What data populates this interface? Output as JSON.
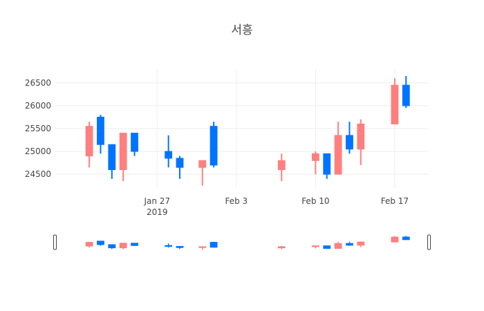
{
  "chart_data": {
    "type": "candlestick",
    "title": "서흥",
    "xlabel": "",
    "ylabel": "",
    "ylim": [
      24200,
      26800
    ],
    "yticks": [
      24500,
      25000,
      25500,
      26000,
      26500
    ],
    "ytick_labels": [
      "24500",
      "25000",
      "25500",
      "26000",
      "26500"
    ],
    "x_range": [
      "2019-01-18",
      "2019-02-20"
    ],
    "xticks": [
      "2019-01-27",
      "2019-02-03",
      "2019-02-10",
      "2019-02-17"
    ],
    "xtick_labels": [
      "Jan 27",
      "Feb 3",
      "Feb 10",
      "Feb 17"
    ],
    "xtick_sublabel": "2019",
    "grid": true,
    "legend": "none",
    "range_slider": true,
    "colors": {
      "increasing": "#0074ff",
      "decreasing": "#ff7f7f",
      "grid": "#eeeeee",
      "text": "#444444"
    },
    "candles": [
      {
        "date": "2019-01-21",
        "open": 25550,
        "high": 25650,
        "low": 24650,
        "close": 24900
      },
      {
        "date": "2019-01-22",
        "open": 25150,
        "high": 25800,
        "low": 24950,
        "close": 25750
      },
      {
        "date": "2019-01-23",
        "open": 24600,
        "high": 25150,
        "low": 24400,
        "close": 25150
      },
      {
        "date": "2019-01-24",
        "open": 25400,
        "high": 25400,
        "low": 24350,
        "close": 24600
      },
      {
        "date": "2019-01-25",
        "open": 25000,
        "high": 25400,
        "low": 24900,
        "close": 25400
      },
      {
        "date": "2019-01-28",
        "open": 24850,
        "high": 25350,
        "low": 24650,
        "close": 25000
      },
      {
        "date": "2019-01-29",
        "open": 24650,
        "high": 24900,
        "low": 24400,
        "close": 24850
      },
      {
        "date": "2019-01-31",
        "open": 24800,
        "high": 24800,
        "low": 24250,
        "close": 24650
      },
      {
        "date": "2019-02-01",
        "open": 24700,
        "high": 25650,
        "low": 24650,
        "close": 25550
      },
      {
        "date": "2019-02-07",
        "open": 24800,
        "high": 24950,
        "low": 24350,
        "close": 24600
      },
      {
        "date": "2019-02-10",
        "open": 24950,
        "high": 25000,
        "low": 24500,
        "close": 24800
      },
      {
        "date": "2019-02-11",
        "open": 24500,
        "high": 24950,
        "low": 24400,
        "close": 24950
      },
      {
        "date": "2019-02-12",
        "open": 25350,
        "high": 25650,
        "low": 24500,
        "close": 24500
      },
      {
        "date": "2019-02-13",
        "open": 25050,
        "high": 25650,
        "low": 24950,
        "close": 25350
      },
      {
        "date": "2019-02-14",
        "open": 25600,
        "high": 25700,
        "low": 24700,
        "close": 25050
      },
      {
        "date": "2019-02-17",
        "open": 26450,
        "high": 26600,
        "low": 25600,
        "close": 25600
      },
      {
        "date": "2019-02-18",
        "open": 26000,
        "high": 26650,
        "low": 25950,
        "close": 26450
      }
    ]
  }
}
